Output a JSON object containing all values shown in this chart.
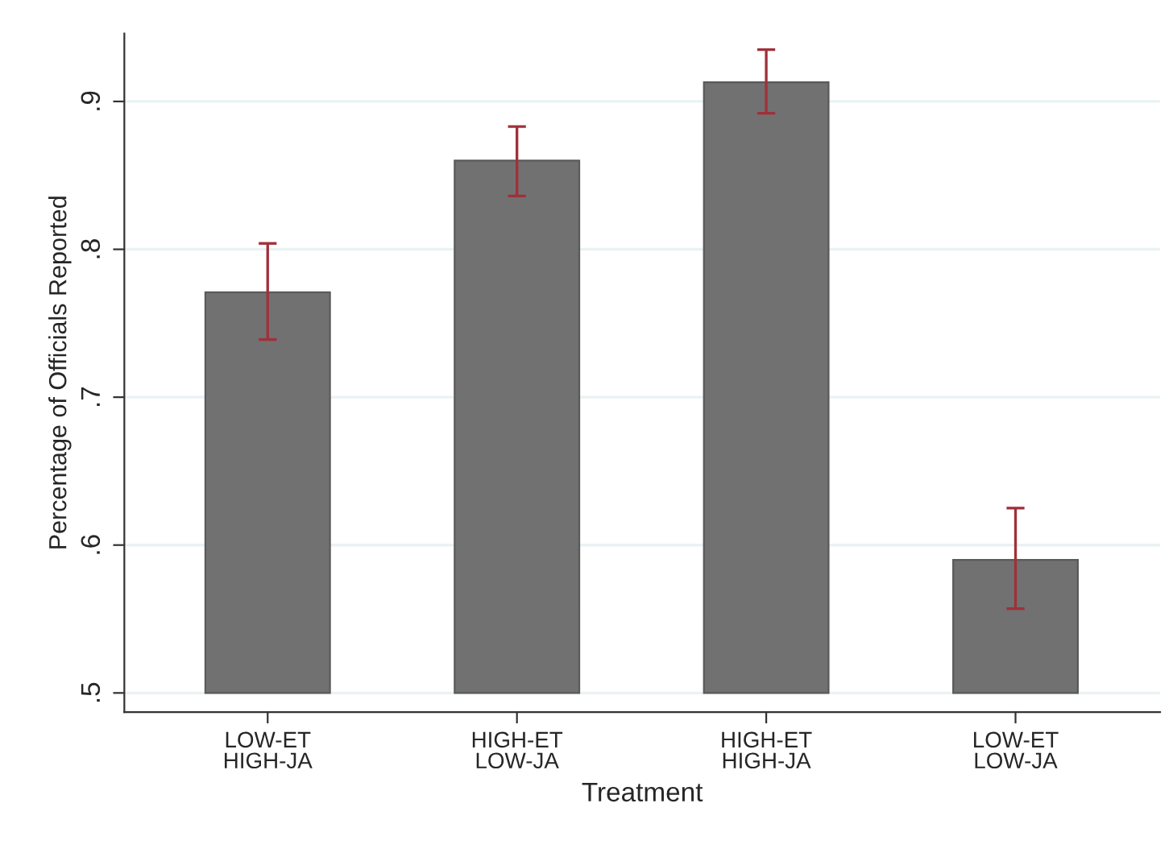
{
  "chart_data": {
    "type": "bar",
    "xlabel": "Treatment",
    "ylabel": "Percentage of Officials Reported",
    "categories": [
      "LOW-ET\nHIGH-JA",
      "HIGH-ET\nLOW-JA",
      "HIGH-ET\nHIGH-JA",
      "LOW-ET\nLOW-JA"
    ],
    "values": [
      0.271,
      0.36,
      0.413,
      0.09
    ],
    "base": [
      0.5,
      0.5,
      0.5,
      0.5
    ],
    "errors": [
      [
        0.739,
        0.804
      ],
      [
        0.836,
        0.883
      ],
      [
        0.892,
        0.935
      ],
      [
        0.557,
        0.625
      ]
    ],
    "color": "#717171",
    "ylim": [
      0.487,
      0.946
    ],
    "yticks": [
      {
        "value": 0.5,
        "label": ".5"
      },
      {
        "value": 0.6,
        "label": ".6"
      },
      {
        "value": 0.7,
        "label": ".7"
      },
      {
        "value": 0.8,
        "label": ".8"
      },
      {
        "value": 0.9,
        "label": ".9"
      }
    ],
    "grid": "y"
  }
}
